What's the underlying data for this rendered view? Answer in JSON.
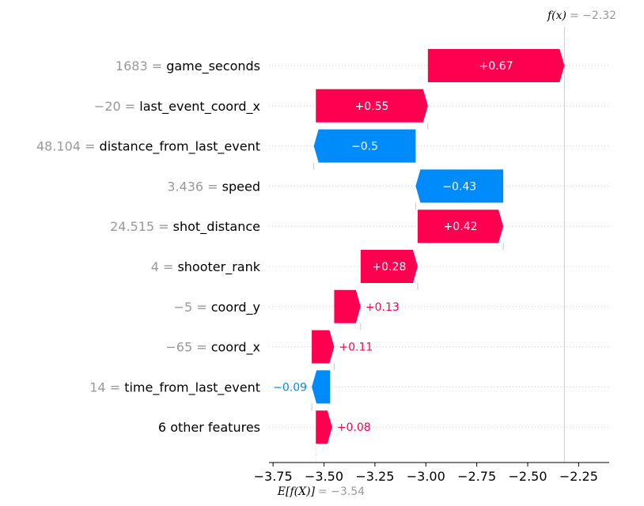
{
  "chart_data": {
    "type": "waterfall",
    "title": "",
    "xlabel": "",
    "ylabel": "",
    "fx_label": "f(x)",
    "fx_value": "= −2.32",
    "ex_label": "E[f(X)]",
    "ex_value": "= −3.54",
    "base_value": -3.54,
    "final_value": -2.32,
    "xlim": [
      -3.77,
      -2.1
    ],
    "xticks": [
      -3.75,
      -3.5,
      -3.25,
      -3.0,
      -2.75,
      -2.5,
      -2.25
    ],
    "xtick_labels": [
      "−3.75",
      "−3.50",
      "−3.25",
      "−3.00",
      "−2.75",
      "−2.50",
      "−2.25"
    ],
    "positive_color": "#ff0051",
    "negative_color": "#008bfb",
    "features": [
      {
        "value": "1683",
        "name": "game_seconds",
        "contribution": 0.67,
        "start": -2.99,
        "label": "+0.67"
      },
      {
        "value": "−20",
        "name": "last_event_coord_x",
        "contribution": 0.55,
        "start": -3.54,
        "label": "+0.55"
      },
      {
        "value": "48.104",
        "name": "distance_from_last_event",
        "contribution": -0.5,
        "start": -3.05,
        "label": "−0.5"
      },
      {
        "value": "3.436",
        "name": "speed",
        "contribution": -0.43,
        "start": -2.62,
        "label": "−0.43"
      },
      {
        "value": "24.515",
        "name": "shot_distance",
        "contribution": 0.42,
        "start": -3.04,
        "label": "+0.42"
      },
      {
        "value": "4",
        "name": "shooter_rank",
        "contribution": 0.28,
        "start": -3.32,
        "label": "+0.28"
      },
      {
        "value": "−5",
        "name": "coord_y",
        "contribution": 0.13,
        "start": -3.45,
        "label": "+0.13"
      },
      {
        "value": "−65",
        "name": "coord_x",
        "contribution": 0.11,
        "start": -3.56,
        "label": "+0.11"
      },
      {
        "value": "14",
        "name": "time_from_last_event",
        "contribution": -0.09,
        "start": -3.47,
        "label": "−0.09"
      },
      {
        "value": "",
        "name": "6 other features",
        "contribution": 0.08,
        "start": -3.54,
        "label": "+0.08"
      }
    ]
  }
}
